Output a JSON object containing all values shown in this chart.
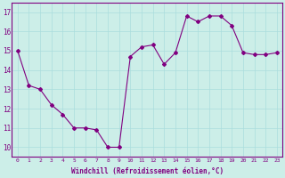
{
  "x": [
    0,
    1,
    2,
    3,
    4,
    5,
    6,
    7,
    8,
    9,
    10,
    11,
    12,
    13,
    14,
    15,
    16,
    17,
    18,
    19,
    20,
    21,
    22,
    23
  ],
  "y": [
    15.0,
    13.2,
    13.0,
    12.2,
    11.7,
    11.0,
    11.0,
    10.9,
    10.0,
    10.0,
    14.7,
    15.2,
    15.3,
    14.3,
    14.9,
    16.8,
    16.5,
    16.8,
    16.8,
    16.3,
    14.9,
    14.8,
    14.8,
    14.9
  ],
  "line_color": "#800080",
  "marker": "D",
  "marker_size": 2.0,
  "bg_color": "#cceee8",
  "grid_color": "#aadddd",
  "xlabel": "Windchill (Refroidissement éolien,°C)",
  "ylabel_ticks": [
    10,
    11,
    12,
    13,
    14,
    15,
    16,
    17
  ],
  "ylim": [
    9.5,
    17.5
  ],
  "xlim": [
    -0.5,
    23.5
  ],
  "title": ""
}
